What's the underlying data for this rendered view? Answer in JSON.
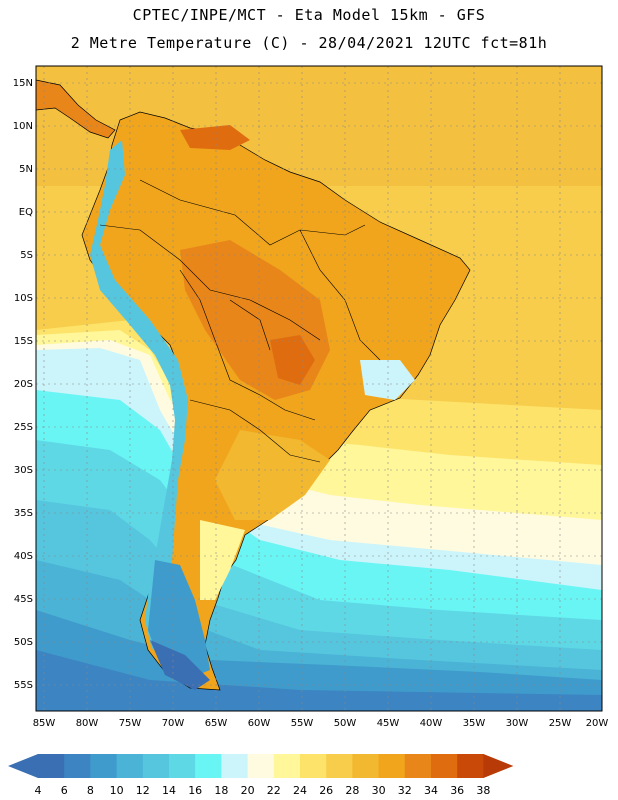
{
  "header": {
    "line1": "CPTEC/INPE/MCT -  Eta Model 15km - GFS",
    "line2": "2 Metre Temperature (C) - 28/04/2021 12UTC fct=81h"
  },
  "map": {
    "lat_labels": [
      "15N",
      "10N",
      "5N",
      "EQ",
      "5S",
      "10S",
      "15S",
      "20S",
      "25S",
      "30S",
      "35S",
      "40S",
      "45S",
      "50S",
      "55S"
    ],
    "lon_labels": [
      "85W",
      "80W",
      "75W",
      "70W",
      "65W",
      "60W",
      "55W",
      "50W",
      "45W",
      "40W",
      "35W",
      "30W",
      "25W",
      "20W"
    ]
  },
  "colorbar": {
    "labels": [
      "4",
      "6",
      "8",
      "10",
      "12",
      "14",
      "16",
      "18",
      "20",
      "22",
      "24",
      "26",
      "28",
      "30",
      "32",
      "34",
      "36",
      "38"
    ],
    "colors": [
      "#3a6fb3",
      "#3c84c2",
      "#3f9bcb",
      "#4ab3d6",
      "#56c6de",
      "#5fd8e6",
      "#6af5f5",
      "#ccf5fb",
      "#fffbe0",
      "#fff799",
      "#fde36a",
      "#f7cd4b",
      "#f2b830",
      "#f0a51c",
      "#e8861a",
      "#df6d10",
      "#c94908",
      "#b83a06"
    ]
  }
}
